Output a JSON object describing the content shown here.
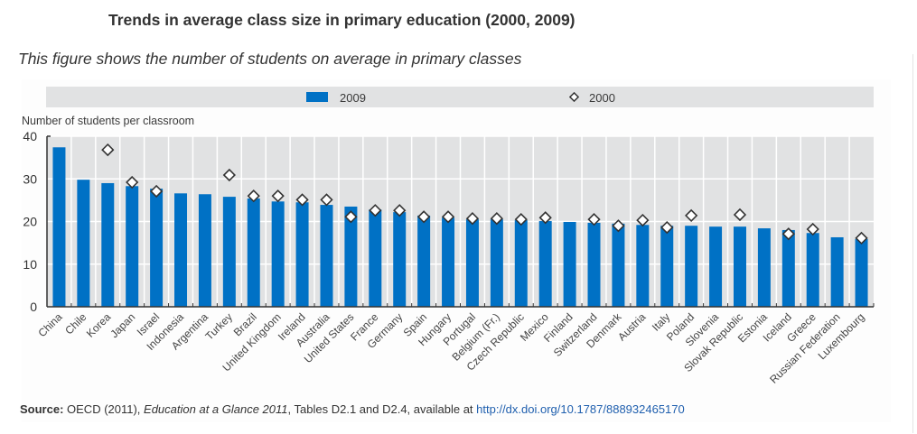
{
  "title": "Trends in average class size in primary education (2000, 2009)",
  "subtitle": "This figure shows the number of students on average in primary classes",
  "legend": {
    "series_2009": "2009",
    "series_2000": "2000"
  },
  "source": {
    "label": "Source:",
    "text_before": " OECD (2011), ",
    "publication": "Education at a Glance 2011",
    "text_after": ", Tables D2.1 and D2.4, available at ",
    "link": "http://dx.doi.org/10.1787/888932465170"
  },
  "colors": {
    "bar": "#0071c5",
    "plot_background": "#e1e2e3",
    "gridline": "#ffffff",
    "marker_fill": "#ffffff",
    "marker_stroke": "#333333"
  },
  "chart_data": {
    "type": "bar",
    "title": "Trends in average class size in primary education (2000, 2009)",
    "xlabel": "",
    "ylabel": "Number of students per classroom",
    "ylim": [
      0,
      40
    ],
    "yticks": [
      0,
      10,
      20,
      30,
      40
    ],
    "grid": true,
    "legend_position": "top",
    "categories": [
      "China",
      "Chile",
      "Korea",
      "Japan",
      "Israel",
      "Indonesia",
      "Argentina",
      "Turkey",
      "Brazil",
      "United Kingdom",
      "Ireland",
      "Australia",
      "United States",
      "France",
      "Germany",
      "Spain",
      "Hungary",
      "Portugal",
      "Belgium (Fr.)",
      "Czech Republic",
      "Mexico",
      "Finland",
      "Switzerland",
      "Denmark",
      "Austria",
      "Italy",
      "Poland",
      "Slovenia",
      "Slovak Republic",
      "Estonia",
      "Iceland",
      "Greece",
      "Russian Federation",
      "Luxembourg"
    ],
    "series": [
      {
        "name": "2009",
        "type": "bar",
        "values": [
          37.4,
          29.8,
          29.0,
          28.3,
          27.7,
          26.6,
          26.4,
          25.8,
          25.4,
          24.7,
          24.5,
          23.9,
          23.5,
          22.8,
          22.2,
          21.4,
          20.9,
          20.5,
          20.5,
          20.3,
          20.1,
          19.9,
          19.7,
          19.5,
          19.2,
          19.0,
          19.0,
          18.8,
          18.8,
          18.4,
          18.0,
          17.3,
          16.3,
          15.9
        ]
      },
      {
        "name": "2000",
        "type": "marker",
        "values": [
          null,
          null,
          36.8,
          29.2,
          27.1,
          null,
          null,
          30.9,
          26.0,
          26.0,
          25.1,
          25.1,
          21.1,
          22.6,
          22.6,
          21.1,
          21.1,
          20.7,
          20.7,
          20.5,
          20.9,
          null,
          20.5,
          19.0,
          20.3,
          18.6,
          21.4,
          null,
          21.6,
          null,
          17.1,
          18.2,
          null,
          16.1
        ]
      }
    ]
  }
}
